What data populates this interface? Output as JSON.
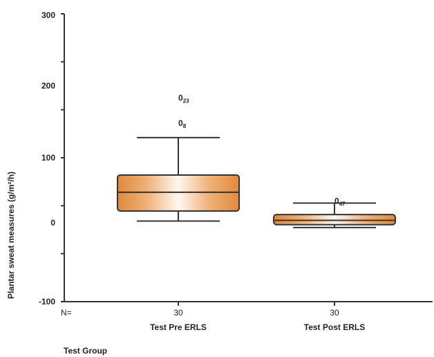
{
  "chart_data": {
    "type": "box",
    "ylabel": "Plantar sweat measures (g/m²/h)",
    "xlabel": "Test Group",
    "n_prefix": "N=",
    "ylim": [
      -100,
      300
    ],
    "yticks_labeled": [
      {
        "value": -100,
        "label": "-100"
      },
      {
        "value": 0,
        "label": "0"
      },
      {
        "value": 100,
        "label": "100"
      },
      {
        "value": 200,
        "label": "200"
      },
      {
        "value": 300,
        "label": "300"
      }
    ],
    "yticks_minor": [
      -100,
      -33.3,
      33.3,
      100,
      166.7,
      233.3,
      300
    ],
    "categories": [
      "Test Pre ERLS",
      "Test Post ERLS"
    ],
    "n": [
      "30",
      "30"
    ],
    "boxes": [
      {
        "category": "Test Pre ERLS",
        "whisker_low": 12,
        "q1": 26,
        "median": 52,
        "q3": 76,
        "whisker_high": 128,
        "outliers": [
          {
            "value": 183,
            "label": "0",
            "sub": "23"
          },
          {
            "value": 148,
            "label": "0",
            "sub": "8"
          }
        ]
      },
      {
        "category": "Test Post ERLS",
        "whisker_low": 3,
        "q1": 7,
        "median": 13,
        "q3": 21,
        "whisker_high": 37,
        "outliers": [
          {
            "value": 40,
            "label": "0",
            "sub": "47"
          }
        ]
      }
    ],
    "box_color": "#e08a3c",
    "grid": false
  }
}
